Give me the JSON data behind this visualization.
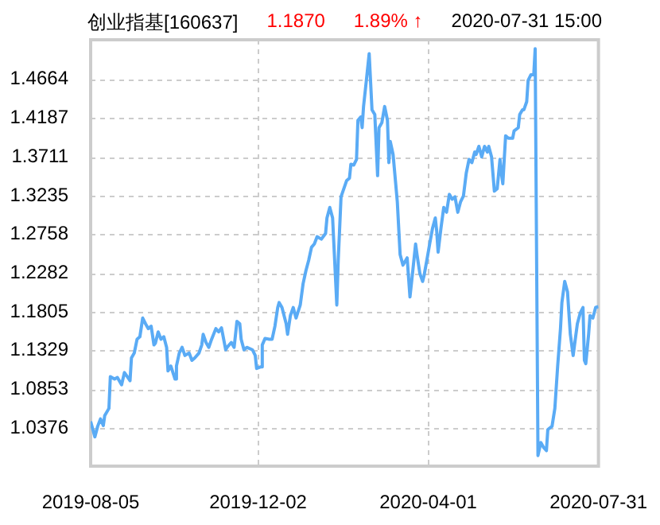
{
  "chart_data": {
    "type": "line",
    "title": "创业指基[160637]",
    "annotations": [
      "1.1870",
      "1.89% ↑",
      "2020-07-31 15:00"
    ],
    "xlim": [
      "2019-08-05",
      "2020-07-31"
    ],
    "xticks": [
      "2019-08-05",
      "2019-12-02",
      "2020-04-01",
      "2020-07-31"
    ],
    "ylim": [
      0.991,
      1.515
    ],
    "yticks": [
      1.0376,
      1.0853,
      1.1329,
      1.1805,
      1.2282,
      1.2758,
      1.3235,
      1.3711,
      1.4187,
      1.4664
    ],
    "grid": true,
    "legend": false,
    "marker": "none",
    "line_style": "solid",
    "series": [
      {
        "color": "#5aabf5",
        "x": [
          "2019-08-05",
          "2019-08-08",
          "2019-08-10",
          "2019-08-12",
          "2019-08-14",
          "2019-08-15",
          "2019-08-18",
          "2019-08-19",
          "2019-08-22",
          "2019-08-24",
          "2019-08-27",
          "2019-08-29",
          "2019-08-31",
          "2019-09-02",
          "2019-09-03",
          "2019-09-05",
          "2019-09-07",
          "2019-09-09",
          "2019-09-11",
          "2019-09-13",
          "2019-09-15",
          "2019-09-17",
          "2019-09-19",
          "2019-09-20",
          "2019-09-22",
          "2019-09-24",
          "2019-09-26",
          "2019-09-28",
          "2019-09-29",
          "2019-10-01",
          "2019-10-04",
          "2019-10-05",
          "2019-10-07",
          "2019-10-09",
          "2019-10-11",
          "2019-10-14",
          "2019-10-16",
          "2019-10-18",
          "2019-10-21",
          "2019-10-23",
          "2019-10-24",
          "2019-10-26",
          "2019-10-28",
          "2019-10-30",
          "2019-11-02",
          "2019-11-04",
          "2019-11-06",
          "2019-11-09",
          "2019-11-10",
          "2019-11-13",
          "2019-11-15",
          "2019-11-17",
          "2019-11-19",
          "2019-11-20",
          "2019-11-22",
          "2019-11-24",
          "2019-11-28",
          "2019-11-30",
          "2019-12-01",
          "2019-12-04",
          "2019-12-05",
          "2019-12-07",
          "2019-12-10",
          "2019-12-12",
          "2019-12-14",
          "2019-12-16",
          "2019-12-17",
          "2019-12-19",
          "2019-12-22",
          "2019-12-23",
          "2019-12-25",
          "2019-12-27",
          "2019-12-29",
          "2020-01-01",
          "2020-01-03",
          "2020-01-05",
          "2020-01-07",
          "2020-01-09",
          "2020-01-11",
          "2020-01-13",
          "2020-01-16",
          "2020-01-19",
          "2020-01-20",
          "2020-01-22",
          "2020-01-24",
          "2020-01-27",
          "2020-01-28",
          "2020-01-30",
          "2020-02-01",
          "2020-02-03",
          "2020-02-05",
          "2020-02-06",
          "2020-02-08",
          "2020-02-10",
          "2020-02-11",
          "2020-02-13",
          "2020-02-14",
          "2020-02-15",
          "2020-02-17",
          "2020-02-19",
          "2020-02-21",
          "2020-02-23",
          "2020-02-25",
          "2020-02-26",
          "2020-02-28",
          "2020-03-01",
          "2020-03-03",
          "2020-03-04",
          "2020-03-05",
          "2020-03-07",
          "2020-03-10",
          "2020-03-12",
          "2020-03-14",
          "2020-03-17",
          "2020-03-19",
          "2020-03-21",
          "2020-03-23",
          "2020-03-24",
          "2020-03-26",
          "2020-03-28",
          "2020-03-29",
          "2020-03-31",
          "2020-04-02",
          "2020-04-04",
          "2020-04-06",
          "2020-04-07",
          "2020-04-08",
          "2020-04-10",
          "2020-04-12",
          "2020-04-14",
          "2020-04-16",
          "2020-04-18",
          "2020-04-20",
          "2020-04-22",
          "2020-04-24",
          "2020-04-26",
          "2020-04-28",
          "2020-04-30",
          "2020-05-02",
          "2020-05-04",
          "2020-05-05",
          "2020-05-07",
          "2020-05-09",
          "2020-05-11",
          "2020-05-13",
          "2020-05-14",
          "2020-05-16",
          "2020-05-18",
          "2020-05-20",
          "2020-05-22",
          "2020-05-23",
          "2020-05-24",
          "2020-05-26",
          "2020-05-28",
          "2020-05-31",
          "2020-06-01",
          "2020-06-04",
          "2020-06-05",
          "2020-06-07",
          "2020-06-08",
          "2020-06-10",
          "2020-06-11",
          "2020-06-13",
          "2020-06-15",
          "2020-06-16",
          "2020-06-18",
          "2020-06-20",
          "2020-06-22",
          "2020-06-24",
          "2020-06-25",
          "2020-06-28",
          "2020-06-30",
          "2020-07-02",
          "2020-07-04",
          "2020-07-05",
          "2020-07-07",
          "2020-07-09",
          "2020-07-11",
          "2020-07-13",
          "2020-07-14",
          "2020-07-16",
          "2020-07-18",
          "2020-07-20",
          "2020-07-21",
          "2020-07-22",
          "2020-07-24",
          "2020-07-25",
          "2020-07-27",
          "2020-07-29",
          "2020-07-31"
        ],
        "values": [
          1.046,
          1.027,
          1.04,
          1.049,
          1.041,
          1.053,
          1.062,
          1.101,
          1.098,
          1.1,
          1.091,
          1.106,
          1.101,
          1.096,
          1.124,
          1.13,
          1.147,
          1.15,
          1.173,
          1.166,
          1.16,
          1.163,
          1.14,
          1.142,
          1.156,
          1.147,
          1.15,
          1.137,
          1.108,
          1.114,
          1.098,
          1.114,
          1.13,
          1.137,
          1.127,
          1.13,
          1.121,
          1.124,
          1.13,
          1.14,
          1.153,
          1.143,
          1.137,
          1.147,
          1.16,
          1.156,
          1.161,
          1.134,
          1.137,
          1.143,
          1.137,
          1.169,
          1.166,
          1.147,
          1.134,
          1.137,
          1.134,
          1.127,
          1.111,
          1.113,
          1.14,
          1.148,
          1.147,
          1.147,
          1.163,
          1.186,
          1.192,
          1.186,
          1.166,
          1.153,
          1.176,
          1.186,
          1.173,
          1.189,
          1.215,
          1.231,
          1.244,
          1.26,
          1.264,
          1.273,
          1.27,
          1.277,
          1.296,
          1.309,
          1.296,
          1.189,
          1.244,
          1.322,
          1.332,
          1.342,
          1.345,
          1.362,
          1.361,
          1.368,
          1.416,
          1.42,
          1.407,
          1.433,
          1.465,
          1.498,
          1.429,
          1.423,
          1.348,
          1.407,
          1.413,
          1.433,
          1.416,
          1.364,
          1.39,
          1.374,
          1.316,
          1.251,
          1.238,
          1.247,
          1.199,
          1.231,
          1.264,
          1.251,
          1.228,
          1.218,
          1.225,
          1.244,
          1.264,
          1.283,
          1.296,
          1.28,
          1.254,
          1.283,
          1.309,
          1.303,
          1.325,
          1.319,
          1.322,
          1.303,
          1.316,
          1.323,
          1.351,
          1.368,
          1.364,
          1.377,
          1.374,
          1.384,
          1.371,
          1.384,
          1.377,
          1.384,
          1.371,
          1.329,
          1.332,
          1.368,
          1.351,
          1.338,
          1.397,
          1.394,
          1.394,
          1.403,
          1.407,
          1.423,
          1.429,
          1.429,
          1.439,
          1.465,
          1.472,
          1.472,
          1.504,
          1.004,
          1.02,
          1.014,
          1.01,
          1.036,
          1.04,
          1.062,
          1.114,
          1.16,
          1.192,
          1.218,
          1.205,
          1.153,
          1.127,
          1.14,
          1.166,
          1.179,
          1.186,
          1.121,
          1.117,
          1.153,
          1.176,
          1.173,
          1.186,
          1.187
        ]
      }
    ]
  }
}
